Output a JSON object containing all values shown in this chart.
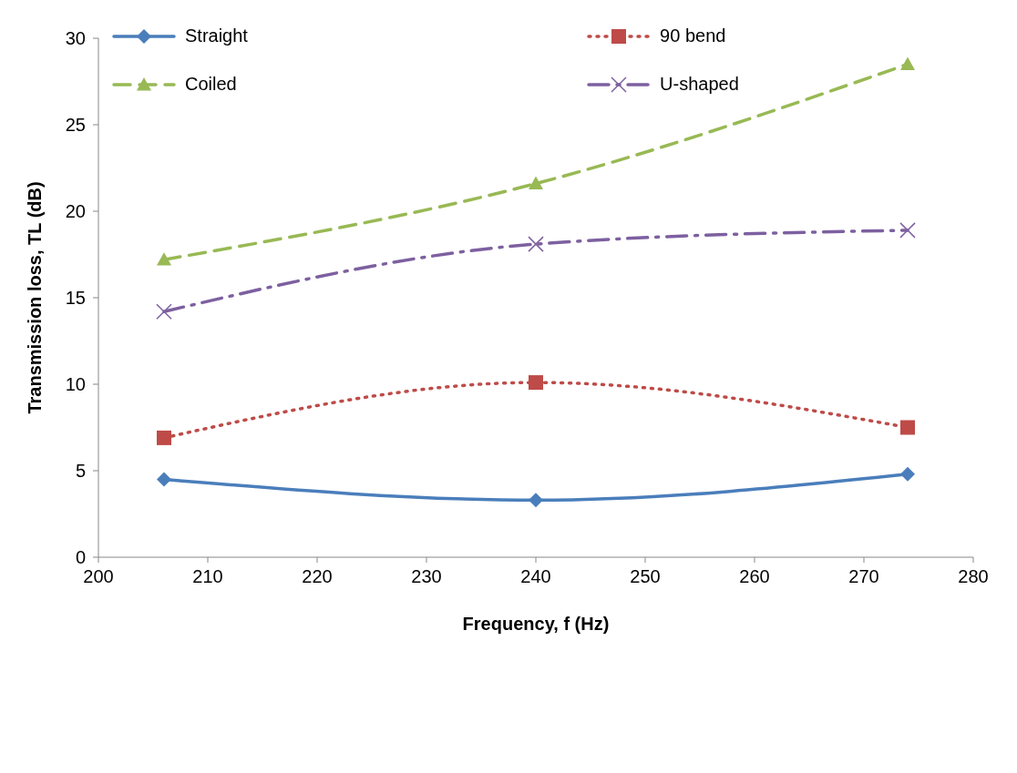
{
  "chart_data": {
    "type": "line",
    "xlabel": "Frequency, f (Hz)",
    "ylabel": "Transmission loss, TL (dB)",
    "x": [
      206,
      240,
      274
    ],
    "xlim": [
      200,
      280
    ],
    "xticks": [
      200,
      210,
      220,
      230,
      240,
      250,
      260,
      270,
      280
    ],
    "ylim": [
      0,
      30
    ],
    "yticks": [
      0,
      5,
      10,
      15,
      20,
      25,
      30
    ],
    "grid": false,
    "legend": "top left",
    "series": [
      {
        "name": "Straight",
        "color": "#4a7ebb",
        "values": [
          4.5,
          3.3,
          4.8
        ],
        "marker": "diamond",
        "line_style": "solid"
      },
      {
        "name": "90 bend",
        "color": "#be4b48",
        "values": [
          6.9,
          10.1,
          7.5
        ],
        "marker": "square",
        "line_style": "dotted"
      },
      {
        "name": "Coiled",
        "color": "#98b954",
        "values": [
          17.2,
          21.6,
          28.5
        ],
        "marker": "triangle",
        "line_style": "dashed"
      },
      {
        "name": "U-shaped",
        "color": "#7d60a0",
        "values": [
          14.2,
          18.1,
          18.9
        ],
        "marker": "cross",
        "line_style": "dashdot"
      }
    ]
  }
}
